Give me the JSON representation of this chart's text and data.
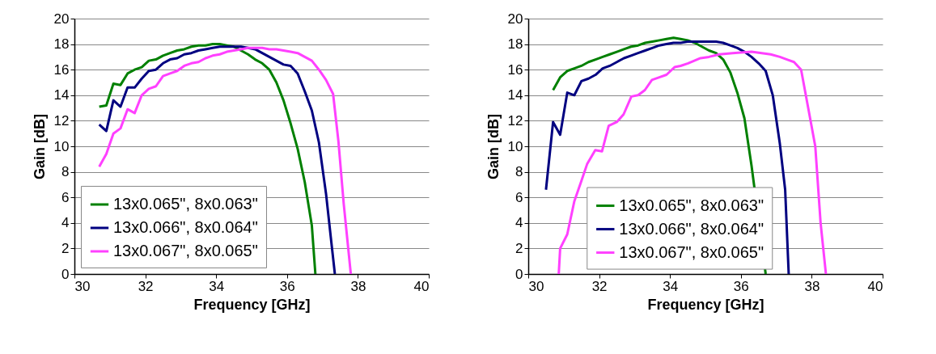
{
  "chart_data": [
    {
      "type": "line",
      "xlabel": "Frequency [GHz]",
      "ylabel": "Gain [dB]",
      "xlim": [
        30,
        40
      ],
      "xticks": [
        30,
        32,
        34,
        36,
        38,
        40
      ],
      "ylim": [
        0,
        20
      ],
      "yticks": [
        0,
        2,
        4,
        6,
        8,
        10,
        12,
        14,
        16,
        18,
        20
      ],
      "grid": "y",
      "legend": "bottom left",
      "marker": "none",
      "line_style": "solid",
      "series": [
        {
          "name": "13x0.065\", 8x0.063\"",
          "color": "#008000",
          "x": [
            30.7,
            30.9,
            31.1,
            31.3,
            31.5,
            31.7,
            31.9,
            32.1,
            32.3,
            32.5,
            32.7,
            32.9,
            33.1,
            33.3,
            33.5,
            33.7,
            33.9,
            34.1,
            34.3,
            34.5,
            34.7,
            34.9,
            35.1,
            35.3,
            35.5,
            35.7,
            35.9,
            36.1,
            36.3,
            36.5,
            36.7,
            36.8
          ],
          "values": [
            13.1,
            13.2,
            14.9,
            14.8,
            15.7,
            16.0,
            16.2,
            16.7,
            16.8,
            17.1,
            17.3,
            17.5,
            17.6,
            17.8,
            17.9,
            17.9,
            18.0,
            18.0,
            17.9,
            17.8,
            17.5,
            17.2,
            16.8,
            16.5,
            16.0,
            15.0,
            13.6,
            11.8,
            9.8,
            7.2,
            3.8,
            0
          ]
        },
        {
          "name": "13x0.066\", 8x0.064\"",
          "color": "#000080",
          "x": [
            30.7,
            30.9,
            31.1,
            31.3,
            31.5,
            31.7,
            31.9,
            32.1,
            32.3,
            32.5,
            32.7,
            32.9,
            33.1,
            33.3,
            33.5,
            33.7,
            33.9,
            34.1,
            34.3,
            34.5,
            34.7,
            34.9,
            35.1,
            35.3,
            35.5,
            35.7,
            35.9,
            36.1,
            36.3,
            36.5,
            36.7,
            36.9,
            37.1,
            37.25,
            37.35
          ],
          "values": [
            11.7,
            11.2,
            13.6,
            13.1,
            14.6,
            14.6,
            15.3,
            15.9,
            16.0,
            16.5,
            16.8,
            16.9,
            17.2,
            17.3,
            17.5,
            17.6,
            17.7,
            17.8,
            17.8,
            17.8,
            17.8,
            17.7,
            17.6,
            17.3,
            17.0,
            16.7,
            16.4,
            16.3,
            15.7,
            14.3,
            12.8,
            10.3,
            6.3,
            2.5,
            0
          ]
        },
        {
          "name": "13x0.067\", 8x0.065\"",
          "color": "#ff40ff",
          "x": [
            30.7,
            30.9,
            31.1,
            31.3,
            31.5,
            31.7,
            31.9,
            32.1,
            32.3,
            32.5,
            32.7,
            32.9,
            33.1,
            33.3,
            33.5,
            33.7,
            33.9,
            34.1,
            34.3,
            34.5,
            34.7,
            34.9,
            35.1,
            35.3,
            35.5,
            35.7,
            35.9,
            36.1,
            36.3,
            36.5,
            36.7,
            36.9,
            37.1,
            37.3,
            37.45,
            37.6,
            37.8
          ],
          "values": [
            8.4,
            9.4,
            11.0,
            11.4,
            12.9,
            12.6,
            14.0,
            14.5,
            14.7,
            15.5,
            15.7,
            15.9,
            16.3,
            16.5,
            16.6,
            16.9,
            17.1,
            17.2,
            17.4,
            17.5,
            17.6,
            17.7,
            17.7,
            17.7,
            17.6,
            17.6,
            17.5,
            17.4,
            17.3,
            17.0,
            16.7,
            16.0,
            15.2,
            14.1,
            10.4,
            5.5,
            0
          ]
        }
      ]
    },
    {
      "type": "line",
      "xlabel": "Frequency [GHz]",
      "ylabel": "Gain [dB]",
      "xlim": [
        30,
        40
      ],
      "xticks": [
        30,
        32,
        34,
        36,
        38,
        40
      ],
      "ylim": [
        0,
        20
      ],
      "yticks": [
        0,
        2,
        4,
        6,
        8,
        10,
        12,
        14,
        16,
        18,
        20
      ],
      "grid": "y",
      "legend": "bottom",
      "marker": "none",
      "line_style": "solid",
      "series": [
        {
          "name": "13x0.065\", 8x0.063\"",
          "color": "#008000",
          "x": [
            30.7,
            30.9,
            31.1,
            31.3,
            31.5,
            31.7,
            31.9,
            32.1,
            32.3,
            32.5,
            32.7,
            32.9,
            33.1,
            33.3,
            33.5,
            33.7,
            33.9,
            34.1,
            34.3,
            34.5,
            34.7,
            34.9,
            35.1,
            35.3,
            35.5,
            35.7,
            35.9,
            36.1,
            36.3,
            36.7
          ],
          "values": [
            14.4,
            15.4,
            15.9,
            16.1,
            16.3,
            16.6,
            16.8,
            17.0,
            17.2,
            17.4,
            17.6,
            17.8,
            17.9,
            18.1,
            18.2,
            18.3,
            18.4,
            18.5,
            18.4,
            18.3,
            18.1,
            17.8,
            17.5,
            17.3,
            16.8,
            15.8,
            14.2,
            12.2,
            8.5,
            0
          ]
        },
        {
          "name": "13x0.066\", 8x0.064\"",
          "color": "#000080",
          "x": [
            30.5,
            30.7,
            30.9,
            31.1,
            31.3,
            31.5,
            31.7,
            31.9,
            32.1,
            32.3,
            32.5,
            32.7,
            32.9,
            33.1,
            33.3,
            33.5,
            33.7,
            33.9,
            34.1,
            34.3,
            34.5,
            34.7,
            34.9,
            35.1,
            35.3,
            35.5,
            35.7,
            35.9,
            36.1,
            36.3,
            36.5,
            36.7,
            36.9,
            37.1,
            37.25,
            37.35
          ],
          "values": [
            6.6,
            11.9,
            10.9,
            14.2,
            14.0,
            15.1,
            15.3,
            15.6,
            16.1,
            16.3,
            16.6,
            16.9,
            17.1,
            17.3,
            17.5,
            17.7,
            17.9,
            18.0,
            18.1,
            18.1,
            18.2,
            18.2,
            18.2,
            18.2,
            18.2,
            18.1,
            17.9,
            17.7,
            17.4,
            17.0,
            16.5,
            15.9,
            14.0,
            10.2,
            6.6,
            0
          ]
        },
        {
          "name": "13x0.067\", 8x0.065\"",
          "color": "#ff40ff",
          "x": [
            30.86,
            30.9,
            31.1,
            31.3,
            31.5,
            31.66,
            31.89,
            32.08,
            32.27,
            32.5,
            32.69,
            32.91,
            33.1,
            33.29,
            33.49,
            33.7,
            33.9,
            34.13,
            34.3,
            34.51,
            34.86,
            35.1,
            35.39,
            35.77,
            36.3,
            36.84,
            37.1,
            37.3,
            37.5,
            37.7,
            37.9,
            38.1,
            38.25,
            38.4
          ],
          "values": [
            0,
            2.0,
            3.1,
            5.7,
            7.3,
            8.6,
            9.7,
            9.6,
            11.6,
            11.9,
            12.5,
            13.9,
            14.0,
            14.4,
            15.2,
            15.4,
            15.6,
            16.2,
            16.3,
            16.5,
            16.9,
            17.0,
            17.2,
            17.3,
            17.4,
            17.2,
            17.0,
            16.8,
            16.6,
            16.0,
            13.0,
            10.0,
            4.0,
            0
          ]
        }
      ]
    }
  ]
}
